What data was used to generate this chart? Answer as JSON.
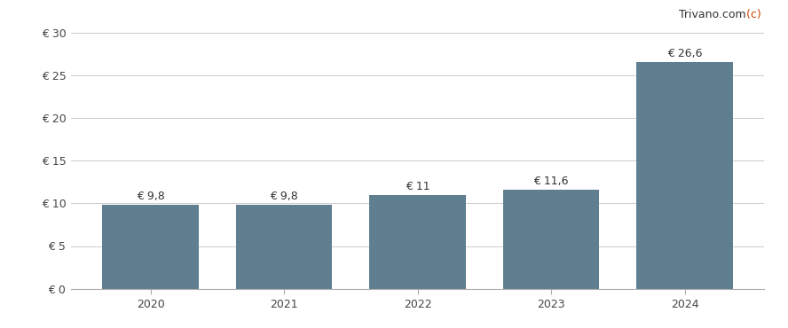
{
  "categories": [
    "2020",
    "2021",
    "2022",
    "2023",
    "2024"
  ],
  "values": [
    9.8,
    9.8,
    11.0,
    11.6,
    26.6
  ],
  "labels": [
    "€ 9,8",
    "€ 9,8",
    "€ 11",
    "€ 11,6",
    "€ 26,6"
  ],
  "bar_color": "#5f7f90",
  "background_color": "#ffffff",
  "ylim": [
    0,
    30
  ],
  "yticks": [
    0,
    5,
    10,
    15,
    20,
    25,
    30
  ],
  "ytick_labels": [
    "€ 0",
    "€ 5",
    "€ 10",
    "€ 15",
    "€ 20",
    "€ 25",
    "€ 30"
  ],
  "watermark_c": "(c) ",
  "watermark_rest": "Trivano.com",
  "watermark_color_c": "#cc4400",
  "watermark_color_rest": "#333333",
  "grid_color": "#cccccc",
  "bar_width": 0.72,
  "label_fontsize": 9,
  "tick_fontsize": 9,
  "watermark_fontsize": 9
}
